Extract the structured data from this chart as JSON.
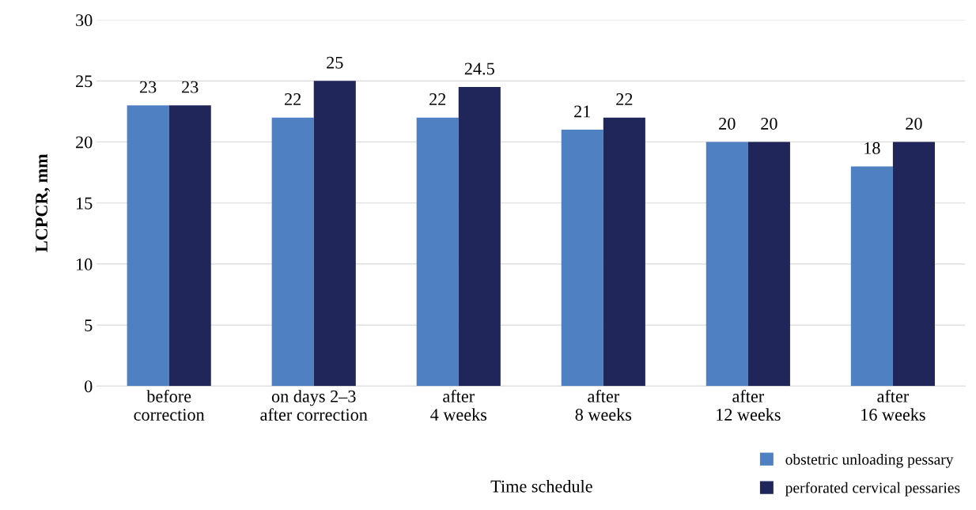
{
  "chart_data": {
    "type": "bar",
    "xlabel": "Time schedule",
    "ylabel": "LCPCR, mm",
    "categories": [
      "before\ncorrection",
      "on days 2–3\nafter correction",
      "after\n4 weeks",
      "after\n8 weeks",
      "after\n12 weeks",
      "after\n16 weeks"
    ],
    "series": [
      {
        "name": "obstetric unloading pessary",
        "color": "#4f81c2",
        "values": [
          23,
          22,
          22,
          21,
          20,
          18
        ]
      },
      {
        "name": "perforated cervical pessaries",
        "color": "#20265a",
        "values": [
          23,
          25,
          24.5,
          22,
          20,
          20
        ]
      }
    ],
    "ylim": [
      0,
      30
    ],
    "yticks": [
      0,
      5,
      10,
      15,
      20,
      25,
      30
    ],
    "grid": "y",
    "legend": "bottom right",
    "data_labels": true
  }
}
